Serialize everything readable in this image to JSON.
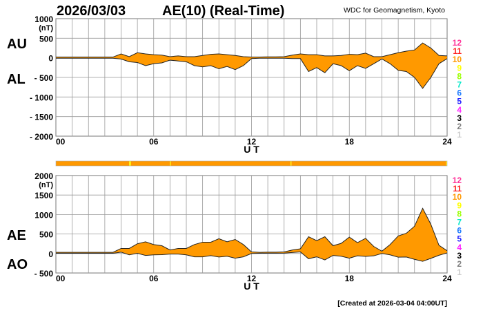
{
  "header": {
    "date": "2026/03/03",
    "title": "AE(10) (Real-Time)",
    "source": "WDC for Geomagnetism, Kyoto"
  },
  "footer": {
    "created": "[Created at 2026-03-04 04:00UT]"
  },
  "legend": {
    "labels": [
      "12",
      "11",
      "10",
      "9",
      "8",
      "7",
      "6",
      "5",
      "4",
      "3",
      "2",
      "1"
    ],
    "colors": [
      "#ff3399",
      "#ff2222",
      "#ff9900",
      "#ffff00",
      "#99ff00",
      "#00e8c8",
      "#1e7cff",
      "#2222ff",
      "#ff22ff",
      "#000000",
      "#808080",
      "#cccccc"
    ]
  },
  "chart_data": [
    {
      "type": "area",
      "xlabel": "U T",
      "unit": "(nT)",
      "x_ticks": [
        "00",
        "06",
        "12",
        "18",
        "24"
      ],
      "xlim": [
        0,
        24
      ],
      "ylim": [
        -2000,
        1000
      ],
      "y_ticks": [
        "1000",
        "500",
        "0",
        "- 500",
        "- 1000",
        "- 1500",
        "- 2000"
      ],
      "grid": true,
      "fill_color": "#ff9900",
      "x": [
        0,
        0.5,
        1,
        1.5,
        2,
        2.5,
        3,
        3.5,
        4,
        4.5,
        5,
        5.5,
        6,
        6.5,
        7,
        7.5,
        8,
        8.5,
        9,
        9.5,
        10,
        10.5,
        11,
        11.5,
        12,
        12.5,
        13,
        13.5,
        14,
        14.5,
        15,
        15.5,
        16,
        16.5,
        17,
        17.5,
        18,
        18.5,
        19,
        19.5,
        20,
        20.5,
        21,
        21.5,
        22,
        22.5,
        23,
        23.5,
        24
      ],
      "series": [
        {
          "name": "AU",
          "values": [
            20,
            20,
            20,
            20,
            20,
            20,
            20,
            20,
            100,
            30,
            130,
            100,
            80,
            70,
            30,
            50,
            30,
            30,
            60,
            90,
            100,
            80,
            60,
            30,
            20,
            20,
            25,
            25,
            30,
            70,
            100,
            80,
            80,
            50,
            50,
            60,
            90,
            80,
            120,
            30,
            30,
            80,
            130,
            170,
            200,
            380,
            250,
            60,
            50
          ]
        },
        {
          "name": "AL",
          "values": [
            -10,
            -10,
            -10,
            -10,
            -10,
            -10,
            -10,
            -10,
            -30,
            -100,
            -120,
            -200,
            -150,
            -130,
            -60,
            -80,
            -100,
            -200,
            -230,
            -200,
            -280,
            -220,
            -300,
            -200,
            -20,
            -10,
            -10,
            -10,
            -10,
            -20,
            -20,
            -350,
            -250,
            -380,
            -150,
            -200,
            -330,
            -200,
            -270,
            -150,
            -30,
            -150,
            -320,
            -350,
            -500,
            -780,
            -500,
            -150,
            -20
          ]
        }
      ]
    },
    {
      "type": "area",
      "xlabel": "U T",
      "unit": "(nT)",
      "x_ticks": [
        "00",
        "06",
        "12",
        "18",
        "24"
      ],
      "xlim": [
        0,
        24
      ],
      "ylim": [
        -500,
        2000
      ],
      "y_ticks": [
        "2000",
        "1500",
        "1000",
        "500",
        "0",
        "- 500"
      ],
      "grid": true,
      "fill_color": "#ff9900",
      "x": [
        0,
        0.5,
        1,
        1.5,
        2,
        2.5,
        3,
        3.5,
        4,
        4.5,
        5,
        5.5,
        6,
        6.5,
        7,
        7.5,
        8,
        8.5,
        9,
        9.5,
        10,
        10.5,
        11,
        11.5,
        12,
        12.5,
        13,
        13.5,
        14,
        14.5,
        15,
        15.5,
        16,
        16.5,
        17,
        17.5,
        18,
        18.5,
        19,
        19.5,
        20,
        20.5,
        21,
        21.5,
        22,
        22.5,
        23,
        23.5,
        24
      ],
      "series": [
        {
          "name": "AE",
          "values": [
            30,
            30,
            30,
            30,
            30,
            30,
            30,
            30,
            130,
            130,
            250,
            300,
            230,
            200,
            90,
            130,
            130,
            230,
            290,
            290,
            380,
            300,
            360,
            230,
            40,
            30,
            35,
            35,
            40,
            90,
            120,
            430,
            330,
            430,
            200,
            260,
            420,
            280,
            390,
            180,
            60,
            230,
            450,
            520,
            700,
            1160,
            750,
            210,
            70
          ]
        },
        {
          "name": "AO",
          "values": [
            5,
            5,
            5,
            5,
            5,
            5,
            5,
            5,
            35,
            -35,
            5,
            -50,
            -35,
            -30,
            -15,
            -15,
            -35,
            -85,
            -85,
            -55,
            -90,
            -70,
            -120,
            -85,
            0,
            5,
            8,
            8,
            10,
            25,
            40,
            -135,
            -85,
            -165,
            -50,
            -70,
            -120,
            -60,
            -75,
            -60,
            0,
            -35,
            -95,
            -90,
            -150,
            -200,
            -125,
            -45,
            15
          ]
        }
      ]
    },
    {
      "type": "station_count_bar",
      "segments": [
        {
          "from": 0,
          "to": 4.5,
          "stations": 10
        },
        {
          "from": 4.5,
          "to": 4.6,
          "stations": 9
        },
        {
          "from": 4.6,
          "to": 7.0,
          "stations": 10
        },
        {
          "from": 7.0,
          "to": 7.05,
          "stations": 9
        },
        {
          "from": 7.05,
          "to": 14.4,
          "stations": 10
        },
        {
          "from": 14.4,
          "to": 14.45,
          "stations": 9
        },
        {
          "from": 14.45,
          "to": 23.95,
          "stations": 10
        },
        {
          "from": 23.95,
          "to": 24,
          "stations": 9
        }
      ]
    }
  ]
}
